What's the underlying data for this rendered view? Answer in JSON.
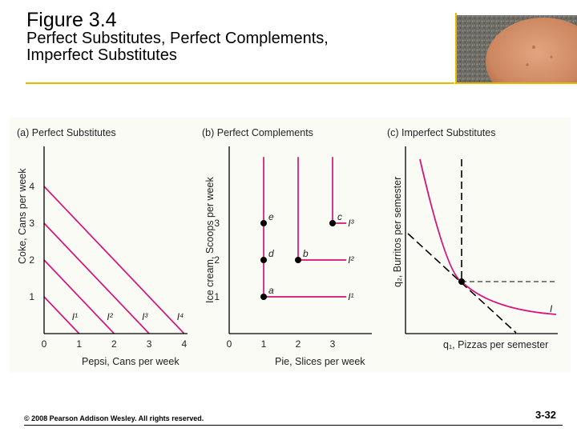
{
  "header": {
    "figure_number": "Figure 3.4",
    "subtitle_line1": "Perfect Substitutes, Perfect Complements,",
    "subtitle_line2": "Imperfect Substitutes",
    "accent_color": "#e6b800",
    "photo_icon": "stone-photo-icon"
  },
  "footer": {
    "copyright": "© 2008 Pearson Addison Wesley. All rights reserved.",
    "page_number": "3-32"
  },
  "colors": {
    "curve": "#d4147a",
    "point": "#000000",
    "axis": "#000000",
    "guide": "#000000"
  },
  "chart_data": [
    {
      "type": "line",
      "title": "(a) Perfect Substitutes",
      "xlabel": "Pepsi, Cans per week",
      "ylabel": "Coke, Cans per week",
      "xlim": [
        0,
        4
      ],
      "ylim": [
        0,
        4
      ],
      "x_ticks": [
        "0",
        "1",
        "2",
        "3",
        "4"
      ],
      "y_ticks": [
        "1",
        "2",
        "3",
        "4"
      ],
      "series": [
        {
          "name": "I¹",
          "points": [
            [
              0,
              1
            ],
            [
              1,
              0
            ]
          ]
        },
        {
          "name": "I²",
          "points": [
            [
              0,
              2
            ],
            [
              2,
              0
            ]
          ]
        },
        {
          "name": "I³",
          "points": [
            [
              0,
              3
            ],
            [
              3,
              0
            ]
          ]
        },
        {
          "name": "I⁴",
          "points": [
            [
              0,
              4
            ],
            [
              4,
              0
            ]
          ]
        }
      ]
    },
    {
      "type": "line",
      "title": "(b) Perfect Complements",
      "xlabel": "Pie, Slices per week",
      "ylabel": "Ice cream, Scoops per week",
      "xlim": [
        0,
        3.6
      ],
      "ylim": [
        0,
        4.8
      ],
      "x_ticks": [
        "0",
        "1",
        "2",
        "3"
      ],
      "y_ticks": [
        "1",
        "2",
        "3"
      ],
      "series": [
        {
          "name": "I¹",
          "corner": [
            1,
            1
          ]
        },
        {
          "name": "I²",
          "corner": [
            2,
            2
          ]
        },
        {
          "name": "I³",
          "corner": [
            3,
            3
          ]
        }
      ],
      "points": [
        {
          "label": "a",
          "x": 1,
          "y": 1
        },
        {
          "label": "d",
          "x": 1,
          "y": 2
        },
        {
          "label": "e",
          "x": 1,
          "y": 3
        },
        {
          "label": "b",
          "x": 2,
          "y": 2
        },
        {
          "label": "c",
          "x": 3,
          "y": 3
        }
      ]
    },
    {
      "type": "line",
      "title": "(c) Imperfect Substitutes",
      "xlabel": "q₁, Pizzas per semester",
      "ylabel": "q₂, Burritos per semester",
      "series": [
        {
          "name": "I"
        }
      ]
    }
  ]
}
